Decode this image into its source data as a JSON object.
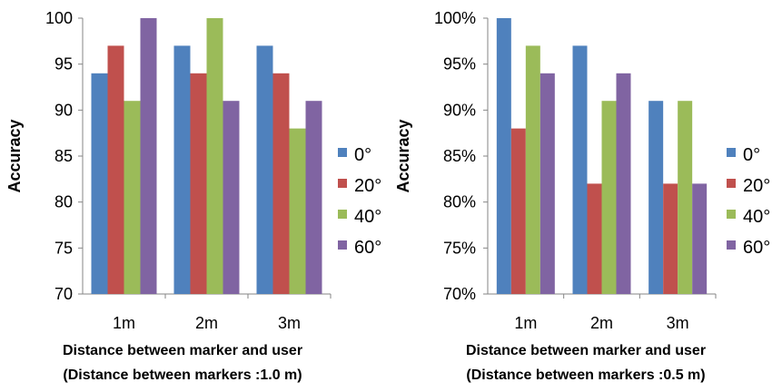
{
  "chart_data": [
    {
      "type": "bar",
      "categories": [
        "1m",
        "2m",
        "3m"
      ],
      "series": [
        {
          "name": "0°",
          "values": [
            94,
            97,
            97
          ],
          "color": "#4f81bd"
        },
        {
          "name": "20°",
          "values": [
            97,
            94,
            94
          ],
          "color": "#c0504d"
        },
        {
          "name": "40°",
          "values": [
            91,
            100,
            88
          ],
          "color": "#9bbb59"
        },
        {
          "name": "60°",
          "values": [
            100,
            91,
            91
          ],
          "color": "#8064a2"
        }
      ],
      "ylabel": "Accuracy",
      "xlabel": "Distance between marker and user",
      "xlabel2": "(Distance between markers :1.0 m)",
      "ylim": [
        70,
        100
      ],
      "ytick_labels": [
        "70",
        "75",
        "80",
        "85",
        "90",
        "95",
        "100"
      ],
      "legend_position": "right",
      "grid": false
    },
    {
      "type": "bar",
      "categories": [
        "1m",
        "2m",
        "3m"
      ],
      "series": [
        {
          "name": "0°",
          "values": [
            100,
            97,
            91
          ],
          "color": "#4f81bd"
        },
        {
          "name": "20°",
          "values": [
            88,
            82,
            82
          ],
          "color": "#c0504d"
        },
        {
          "name": "40°",
          "values": [
            97,
            91,
            91
          ],
          "color": "#9bbb59"
        },
        {
          "name": "60°",
          "values": [
            94,
            94,
            82
          ],
          "color": "#8064a2"
        }
      ],
      "ylabel": "Accuracy",
      "xlabel": "Distance between marker and user",
      "xlabel2": "(Distance between markers :0.5 m)",
      "ylim": [
        70,
        100
      ],
      "ytick_labels": [
        "70%",
        "75%",
        "80%",
        "85%",
        "90%",
        "95%",
        "100%"
      ],
      "legend_position": "right",
      "grid": false
    }
  ]
}
